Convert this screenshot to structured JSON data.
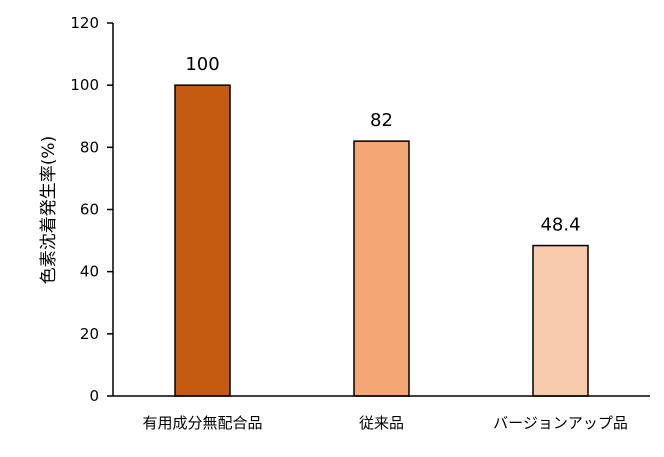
{
  "chart_data": {
    "type": "bar",
    "title": "",
    "xlabel": "",
    "ylabel": "色素沈着発生率(%)",
    "ylim": [
      0,
      120
    ],
    "yticks": [
      0,
      20,
      40,
      60,
      80,
      100,
      120
    ],
    "grid": false,
    "legend": "none",
    "categories": [
      "有用成分無配合品",
      "従来品",
      "バージョンアップ品"
    ],
    "values": [
      100,
      82,
      48.4
    ],
    "data_labels": [
      "100",
      "82",
      "48.4"
    ],
    "colors": [
      "#C55A11",
      "#F4A774",
      "#F8CBAD"
    ],
    "bar_border_color": "#000000",
    "axis_color": "#000000"
  }
}
